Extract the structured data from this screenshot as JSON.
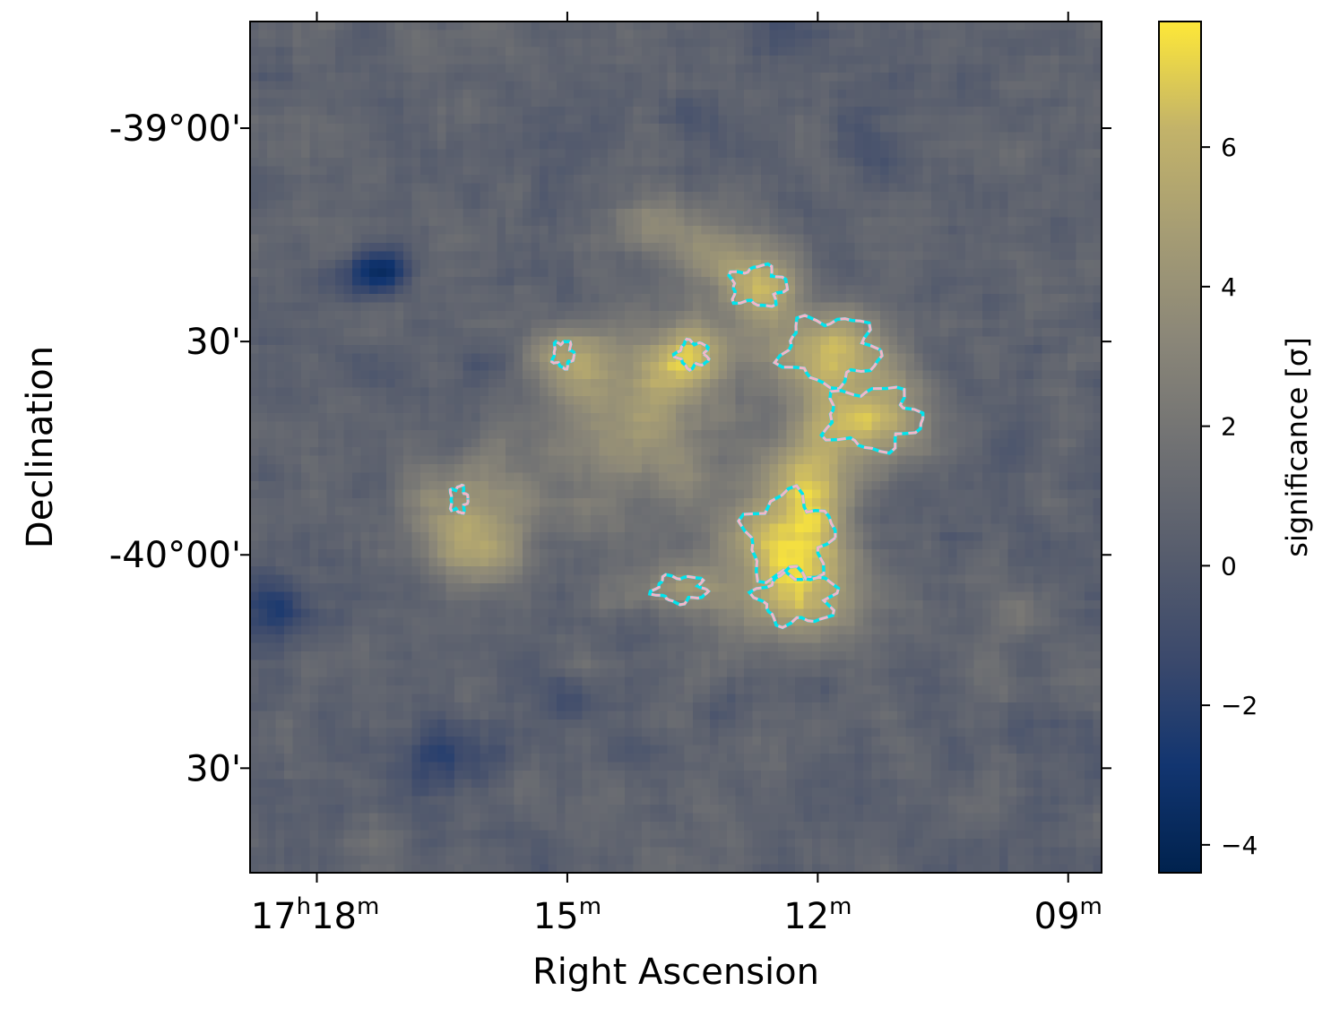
{
  "chart_data": {
    "type": "heatmap",
    "title": "",
    "xlabel": "Right Ascension",
    "ylabel": "Declination",
    "colorbar_label": "significance [σ]",
    "colormap": "cividis",
    "value_range": [
      -4.4,
      7.8
    ],
    "x_ticks": [
      {
        "label": "17h18m",
        "major": "17",
        "sup1": "h",
        "mid": "18",
        "sup2": "m",
        "ra_min": 18
      },
      {
        "label": "15m",
        "major": "15",
        "sup2": "m",
        "ra_min": 15
      },
      {
        "label": "12m",
        "major": "12",
        "sup2": "m",
        "ra_min": 12
      },
      {
        "label": "09m",
        "major": "09",
        "sup2": "m",
        "ra_min": 9
      }
    ],
    "x_range_ra_min": [
      18.8,
      8.6
    ],
    "y_ticks": [
      {
        "label": "-39°00'",
        "dec_deg": -39.0
      },
      {
        "label": "30'",
        "dec_deg": -39.5
      },
      {
        "label": "-40°00'",
        "dec_deg": -40.0
      },
      {
        "label": "30'",
        "dec_deg": -40.5
      }
    ],
    "y_range_dec_deg": [
      -38.75,
      -40.745
    ],
    "colorbar_ticks": [
      {
        "label": "−4",
        "value": -4
      },
      {
        "label": "−2",
        "value": -2
      },
      {
        "label": "0",
        "value": 0
      },
      {
        "label": "2",
        "value": 2
      },
      {
        "label": "4",
        "value": 4
      },
      {
        "label": "6",
        "value": 6
      }
    ],
    "contours": [
      {
        "name": "contour-5sigma",
        "color": "#00e5ee",
        "style": "solid"
      },
      {
        "name": "contour-overlay",
        "color": "#f4b6c8",
        "style": "dashed"
      }
    ],
    "blobs": [
      {
        "ra_min": 11.85,
        "dec_deg": -39.52,
        "amp": 5.6,
        "sra": 0.55,
        "sdec": 0.07
      },
      {
        "ra_min": 11.4,
        "dec_deg": -39.68,
        "amp": 5.4,
        "sra": 0.55,
        "sdec": 0.07
      },
      {
        "ra_min": 12.7,
        "dec_deg": -39.37,
        "amp": 4.9,
        "sra": 0.35,
        "sdec": 0.05
      },
      {
        "ra_min": 12.35,
        "dec_deg": -39.96,
        "amp": 5.6,
        "sra": 0.55,
        "sdec": 0.09
      },
      {
        "ra_min": 12.25,
        "dec_deg": -40.1,
        "amp": 5.3,
        "sra": 0.5,
        "sdec": 0.07
      },
      {
        "ra_min": 12.1,
        "dec_deg": -39.82,
        "amp": 4.7,
        "sra": 0.35,
        "sdec": 0.07
      },
      {
        "ra_min": 13.5,
        "dec_deg": -39.53,
        "amp": 4.0,
        "sra": 0.3,
        "sdec": 0.05
      },
      {
        "ra_min": 13.65,
        "dec_deg": -40.08,
        "amp": 3.9,
        "sra": 0.4,
        "sdec": 0.04
      },
      {
        "ra_min": 14.05,
        "dec_deg": -39.58,
        "amp": 3.3,
        "sra": 0.6,
        "sdec": 0.1
      },
      {
        "ra_min": 15.05,
        "dec_deg": -39.53,
        "amp": 3.6,
        "sra": 0.3,
        "sdec": 0.05
      },
      {
        "ra_min": 16.2,
        "dec_deg": -39.88,
        "amp": 3.4,
        "sra": 0.55,
        "sdec": 0.09
      },
      {
        "ra_min": 16.1,
        "dec_deg": -40.0,
        "amp": 2.8,
        "sra": 0.4,
        "sdec": 0.06
      },
      {
        "ra_min": 14.3,
        "dec_deg": -39.75,
        "amp": 2.6,
        "sra": 0.8,
        "sdec": 0.12
      },
      {
        "ra_min": 13.2,
        "dec_deg": -39.3,
        "amp": 2.6,
        "sra": 0.5,
        "sdec": 0.06
      },
      {
        "ra_min": 9.6,
        "dec_deg": -40.13,
        "amp": 2.0,
        "sra": 0.3,
        "sdec": 0.05
      },
      {
        "ra_min": 14.0,
        "dec_deg": -39.22,
        "amp": 2.2,
        "sra": 0.35,
        "sdec": 0.05
      }
    ],
    "dips": [
      {
        "ra_min": 17.3,
        "dec_deg": -39.34,
        "amp": -4.3,
        "sra": 0.3,
        "sdec": 0.04
      },
      {
        "ra_min": 16.5,
        "dec_deg": -40.48,
        "amp": -2.6,
        "sra": 0.4,
        "sdec": 0.05
      },
      {
        "ra_min": 18.4,
        "dec_deg": -40.12,
        "amp": -2.2,
        "sra": 0.3,
        "sdec": 0.06
      },
      {
        "ra_min": 15.0,
        "dec_deg": -40.35,
        "amp": -1.8,
        "sra": 0.3,
        "sdec": 0.04
      }
    ],
    "noise_sigma": 1.3
  }
}
